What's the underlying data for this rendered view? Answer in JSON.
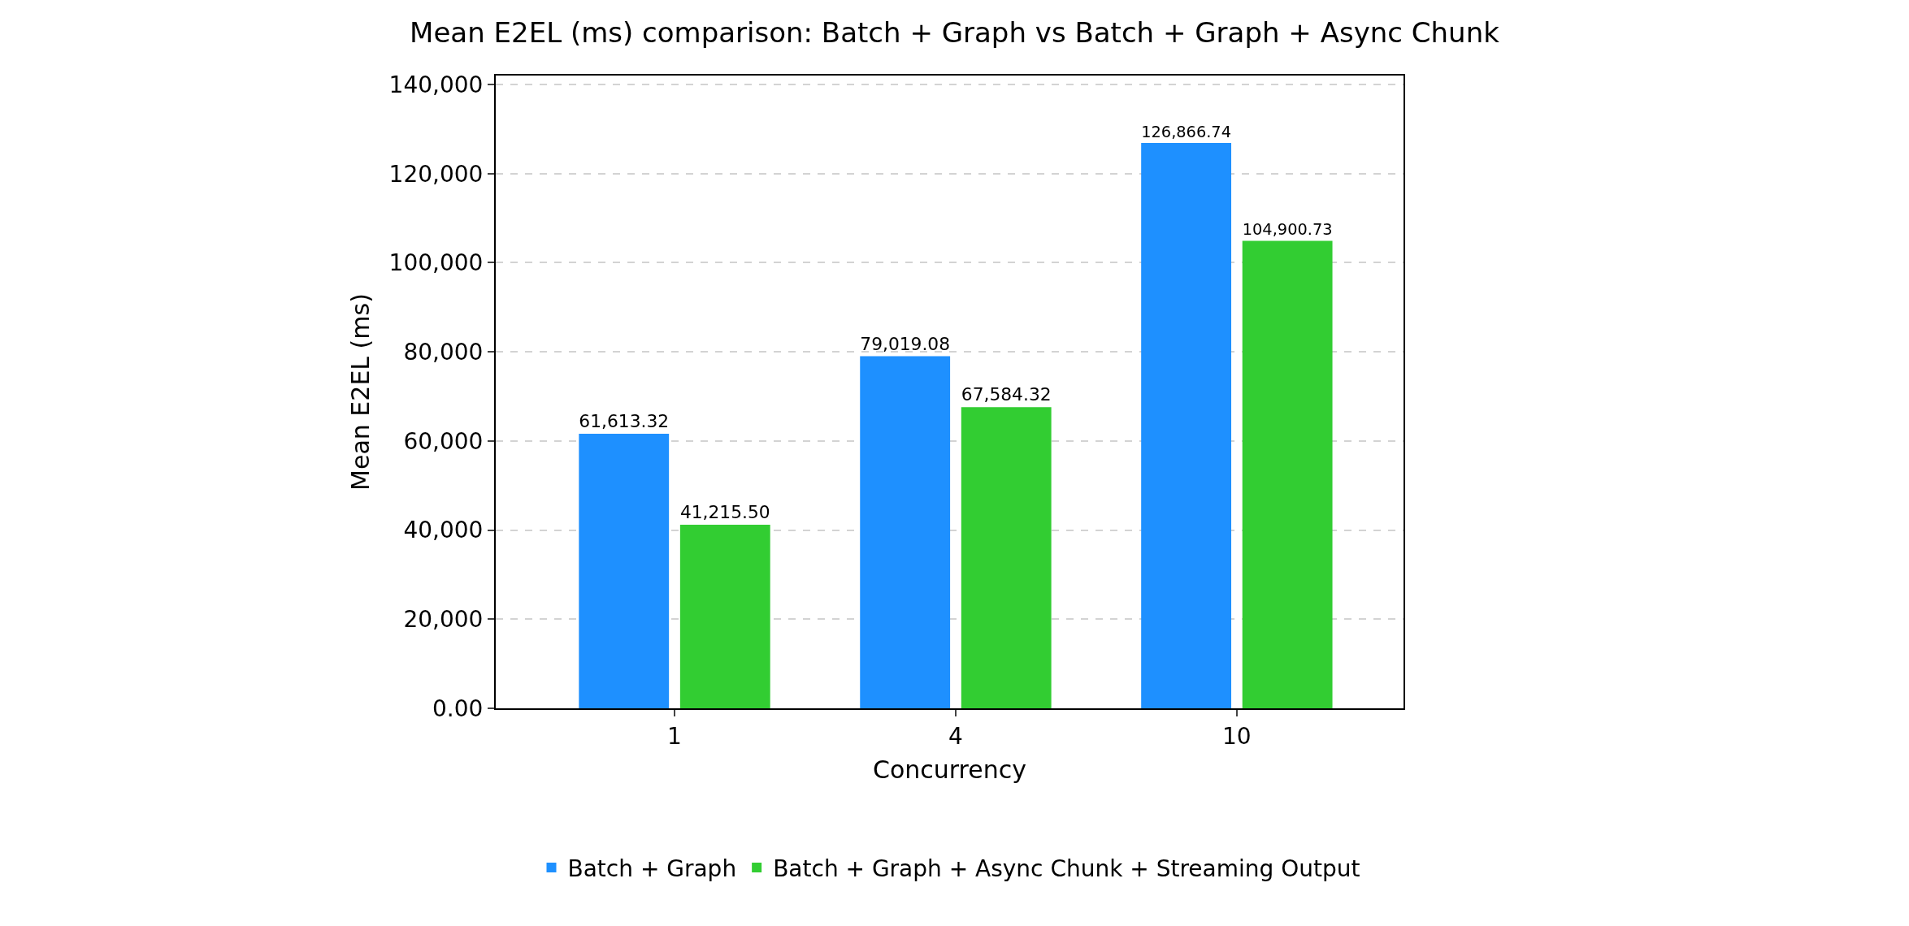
{
  "chart_data": {
    "type": "bar",
    "title": "Mean E2EL (ms) comparison: Batch + Graph vs Batch + Graph + Async Chunk",
    "xlabel": "Concurrency",
    "ylabel": "Mean E2EL (ms)",
    "categories": [
      "1",
      "4",
      "10"
    ],
    "series": [
      {
        "name": "Batch + Graph",
        "color": "#1e90ff",
        "values": [
          61613.32,
          79019.08,
          126866.74
        ],
        "value_labels": [
          "61,613.32",
          "79,019.08",
          "126,866.74"
        ]
      },
      {
        "name": "Batch + Graph + Async Chunk + Streaming Output",
        "color": "#32cd32",
        "values": [
          41215.5,
          67584.32,
          104900.73
        ],
        "value_labels": [
          "41,215.50",
          "67,584.32",
          "104,900.73"
        ]
      }
    ],
    "ylim": [
      0,
      142000
    ],
    "yticks": [
      {
        "value": 0,
        "label": "0.00"
      },
      {
        "value": 20000,
        "label": "20,000"
      },
      {
        "value": 40000,
        "label": "40,000"
      },
      {
        "value": 60000,
        "label": "60,000"
      },
      {
        "value": 80000,
        "label": "80,000"
      },
      {
        "value": 100000,
        "label": "100,000"
      },
      {
        "value": 120000,
        "label": "120,000"
      },
      {
        "value": 140000,
        "label": "140,000"
      }
    ],
    "grid": "y",
    "legend": "bottom"
  }
}
